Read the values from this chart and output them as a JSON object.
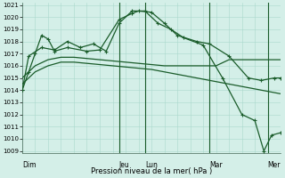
{
  "xlabel": "Pression niveau de la mer( hPa )",
  "background_color": "#d4efe8",
  "grid_color": "#aad8cc",
  "line_color": "#1a5c2a",
  "ylim": [
    1009,
    1021
  ],
  "yticks": [
    1009,
    1010,
    1011,
    1012,
    1013,
    1014,
    1015,
    1016,
    1017,
    1018,
    1019,
    1020,
    1021
  ],
  "day_labels": [
    "Dim",
    "Jeu",
    "Lun",
    "Mar",
    "Mer"
  ],
  "day_x": [
    0.0,
    7.5,
    9.5,
    14.5,
    19.0
  ],
  "vline_x": [
    7.5,
    9.5,
    14.5,
    19.0
  ],
  "xlim": [
    0,
    20
  ],
  "n_grid_x": 20,
  "line1_x": [
    0,
    1,
    2,
    3,
    4,
    5,
    6,
    7,
    8,
    9,
    10,
    11,
    12,
    13,
    14,
    15,
    16,
    17,
    18,
    19,
    20
  ],
  "line1_y": [
    1015.0,
    1016.0,
    1016.5,
    1016.7,
    1016.7,
    1016.6,
    1016.5,
    1016.4,
    1016.3,
    1016.2,
    1016.1,
    1016.0,
    1016.0,
    1016.0,
    1016.0,
    1016.0,
    1016.5,
    1016.5,
    1016.5,
    1016.5,
    1016.5
  ],
  "line2_x": [
    0,
    1,
    2,
    3,
    4,
    5,
    6,
    7,
    8,
    9,
    10,
    11,
    12,
    13,
    14,
    15,
    16,
    17,
    18,
    19,
    20
  ],
  "line2_y": [
    1014.5,
    1015.5,
    1016.0,
    1016.3,
    1016.3,
    1016.2,
    1016.1,
    1016.0,
    1015.9,
    1015.8,
    1015.7,
    1015.5,
    1015.3,
    1015.1,
    1014.9,
    1014.7,
    1014.5,
    1014.3,
    1014.1,
    1013.9,
    1013.7
  ],
  "line3_x": [
    0,
    0.5,
    1.0,
    1.5,
    2.0,
    2.5,
    3.5,
    5.0,
    6.0,
    7.5,
    8.5,
    9.0,
    10.0,
    11.0,
    12.0,
    13.5,
    14.5,
    16.0,
    17.5,
    18.5,
    19.5,
    20.0
  ],
  "line3_y": [
    1014.0,
    1015.5,
    1017.0,
    1018.5,
    1018.2,
    1017.2,
    1017.5,
    1017.2,
    1017.3,
    1019.8,
    1020.3,
    1020.5,
    1020.4,
    1019.5,
    1018.5,
    1018.0,
    1017.8,
    1016.8,
    1015.0,
    1014.8,
    1015.0,
    1015.0
  ],
  "line4_x": [
    0,
    0.5,
    1.5,
    2.5,
    3.5,
    4.5,
    5.5,
    6.5,
    7.5,
    8.5,
    9.5,
    10.5,
    11.5,
    12.5,
    14.0,
    15.5,
    17.0,
    18.0,
    18.7,
    19.3,
    20.0
  ],
  "line4_y": [
    1014.0,
    1016.8,
    1017.5,
    1017.3,
    1018.0,
    1017.5,
    1017.8,
    1017.2,
    1019.5,
    1020.5,
    1020.5,
    1019.5,
    1019.0,
    1018.3,
    1017.7,
    1015.0,
    1012.0,
    1011.5,
    1009.0,
    1010.3,
    1010.5
  ]
}
